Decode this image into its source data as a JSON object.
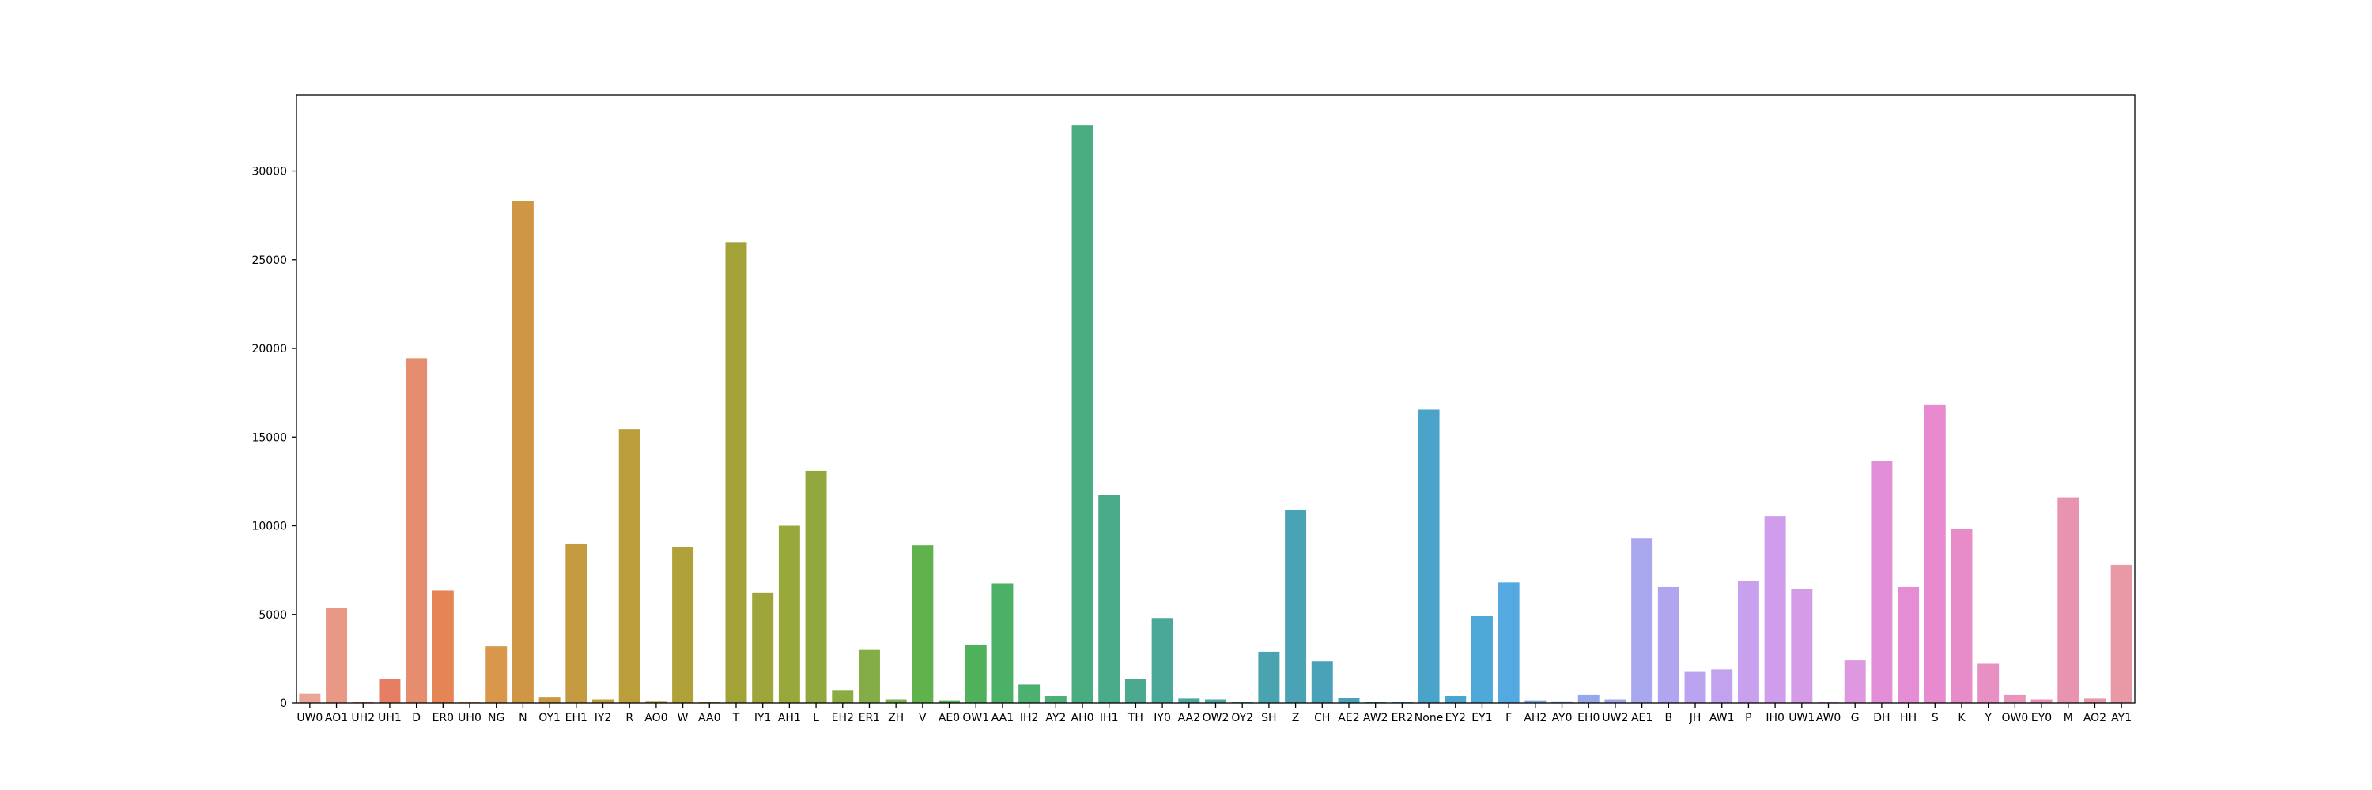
{
  "chart_data": {
    "type": "bar",
    "title": "",
    "xlabel": "",
    "ylabel": "",
    "ylim": [
      0,
      34300
    ],
    "yticks": [
      0,
      5000,
      10000,
      15000,
      20000,
      25000,
      30000
    ],
    "grid": false,
    "legend": "none",
    "categories": [
      "UW0",
      "AO1",
      "UH2",
      "UH1",
      "D",
      "ER0",
      "UH0",
      "NG",
      "N",
      "OY1",
      "EH1",
      "IY2",
      "R",
      "AO0",
      "W",
      "AA0",
      "T",
      "IY1",
      "AH1",
      "L",
      "EH2",
      "ER1",
      "ZH",
      "V",
      "AE0",
      "OW1",
      "AA1",
      "IH2",
      "AY2",
      "AH0",
      "IH1",
      "TH",
      "IY0",
      "AA2",
      "OW2",
      "OY2",
      "SH",
      "Z",
      "CH",
      "AE2",
      "AW2",
      "ER2",
      "None",
      "EY2",
      "EY1",
      "F",
      "AH2",
      "AY0",
      "EH0",
      "UW2",
      "AE1",
      "B",
      "JH",
      "AW1",
      "P",
      "IH0",
      "UW1",
      "AW0",
      "G",
      "DH",
      "HH",
      "S",
      "K",
      "Y",
      "OW0",
      "EY0",
      "M",
      "AO2",
      "AY1"
    ],
    "values": [
      550,
      5350,
      50,
      1350,
      19450,
      6350,
      40,
      3200,
      28300,
      350,
      9000,
      200,
      15450,
      120,
      8800,
      80,
      26000,
      6200,
      10000,
      13100,
      700,
      3000,
      200,
      8900,
      150,
      3300,
      6750,
      1050,
      400,
      32600,
      11750,
      1350,
      4800,
      250,
      200,
      50,
      2900,
      10900,
      2350,
      280,
      60,
      50,
      16550,
      400,
      4900,
      6800,
      150,
      100,
      450,
      200,
      9300,
      6550,
      1800,
      1900,
      6900,
      10550,
      6450,
      70,
      2400,
      13650,
      6550,
      16800,
      9800,
      2250,
      450,
      200,
      11600,
      250,
      7800
    ],
    "colors": [
      "#e8a598",
      "#e89884",
      "#e78a73",
      "#e67e64",
      "#e58d6e",
      "#e58455",
      "#dd8d47",
      "#d8974a",
      "#cf9645",
      "#c9983f",
      "#c49b40",
      "#bf9c3d",
      "#b99e3b",
      "#b59f3a",
      "#b0a13a",
      "#aba238",
      "#a3a238",
      "#9ea53a",
      "#98a83a",
      "#92a83e",
      "#8aac43",
      "#84ad48",
      "#78b04b",
      "#5fb24c",
      "#55b052",
      "#50b15b",
      "#4cb066",
      "#4bb070",
      "#4aaf78",
      "#4aad82",
      "#49ab8a",
      "#4aa98f",
      "#4aa899",
      "#49a7a0",
      "#49a6a5",
      "#4aa5aa",
      "#49a4af",
      "#4aa3b4",
      "#4aa2b8",
      "#4aa1bc",
      "#4aa1c0",
      "#4aa0c6",
      "#4aa3c8",
      "#4aa5cf",
      "#4ea8d8",
      "#54a9e0",
      "#7fa6e6",
      "#8ea6e8",
      "#98a6ea",
      "#a1a6ec",
      "#a9a7ee",
      "#b2a5ef",
      "#bba3f0",
      "#c2a1ef",
      "#c9a0ee",
      "#cf9deb",
      "#d49be7",
      "#d99ae4",
      "#dd98e0",
      "#e28fd8",
      "#e58dd4",
      "#e78acf",
      "#e88cc9",
      "#e88fc3",
      "#e894bd",
      "#e891b6",
      "#e893b0",
      "#e995aa",
      "#e998a5"
    ]
  }
}
